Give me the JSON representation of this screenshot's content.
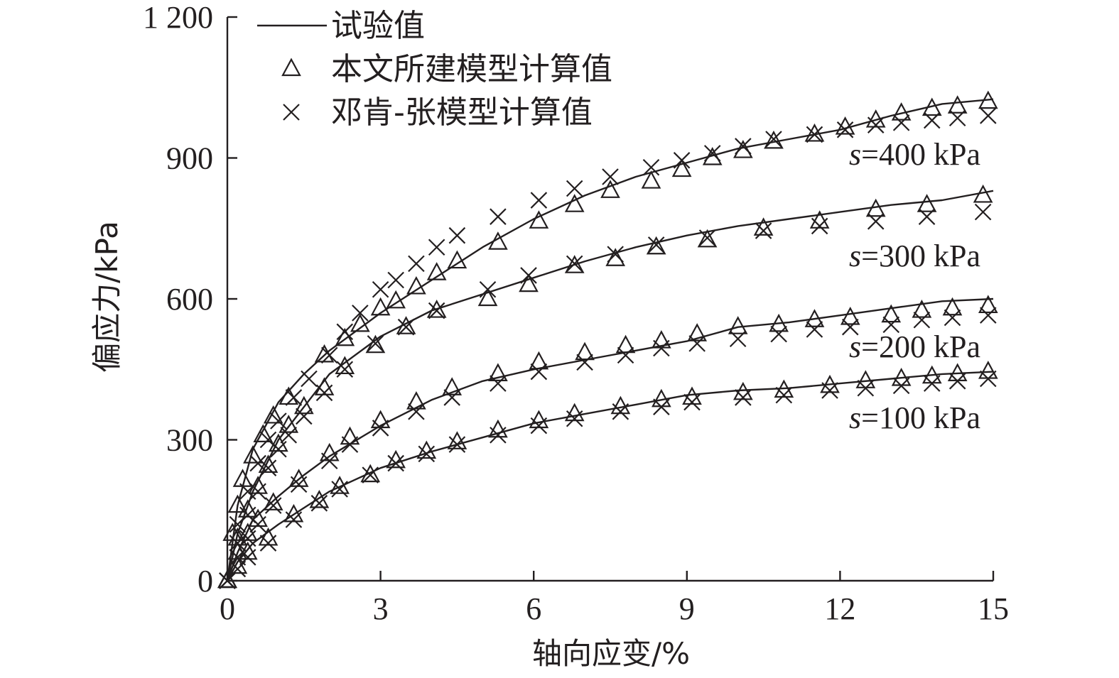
{
  "chart_data": {
    "type": "line",
    "xlabel": "轴向应变/%",
    "ylabel": "偏应力/kPa",
    "xlim": [
      0,
      15
    ],
    "ylim": [
      0,
      1200
    ],
    "x_ticks": [
      "0",
      "3",
      "6",
      "9",
      "12",
      "15"
    ],
    "y_ticks": [
      "0",
      "300",
      "600",
      "900",
      "1 200"
    ],
    "grid": false,
    "legend_position": "top-left",
    "legend": [
      {
        "label": "试验值",
        "symbol": "line"
      },
      {
        "label": "本文所建模型计算值",
        "symbol": "triangle"
      },
      {
        "label": "邓肯-张模型计算值",
        "symbol": "cross"
      }
    ],
    "series": [
      {
        "label_prefix": "s",
        "label_value": "=400 kPa",
        "test_x": [
          0,
          0.2,
          0.5,
          1,
          1.5,
          2,
          3,
          4,
          5,
          6,
          7,
          8,
          9,
          10,
          11,
          12,
          13,
          14,
          15
        ],
        "test_y": [
          0,
          160,
          280,
          380,
          440,
          490,
          570,
          640,
          710,
          770,
          820,
          860,
          890,
          920,
          940,
          960,
          990,
          1015,
          1025
        ],
        "model_x": [
          0,
          0.1,
          0.2,
          0.3,
          0.5,
          0.7,
          0.9,
          1.2,
          1.9,
          2.3,
          2.6,
          3.0,
          3.3,
          3.7,
          4.1,
          4.5,
          5.3,
          6.1,
          6.8,
          7.5,
          8.3,
          8.9,
          9.5,
          10.1,
          10.7,
          11.5,
          12.1,
          12.7,
          13.2,
          13.8,
          14.3,
          14.9
        ],
        "model_y": [
          0,
          100,
          160,
          215,
          265,
          310,
          350,
          390,
          480,
          515,
          545,
          580,
          595,
          625,
          655,
          680,
          720,
          765,
          800,
          830,
          850,
          875,
          900,
          915,
          935,
          950,
          965,
          980,
          995,
          1005,
          1010,
          1020
        ],
        "dc_x": [
          0,
          0.2,
          0.4,
          0.6,
          0.8,
          1.0,
          1.3,
          1.6,
          2.0,
          2.3,
          2.6,
          3.0,
          3.3,
          3.7,
          4.1,
          4.5,
          5.3,
          6.1,
          6.8,
          7.5,
          8.3,
          8.9,
          9.5,
          10.1,
          10.7,
          11.5,
          12.1,
          12.7,
          13.2,
          13.8,
          14.3,
          14.9
        ],
        "dc_y": [
          0,
          120,
          190,
          250,
          300,
          340,
          390,
          430,
          480,
          530,
          570,
          620,
          640,
          675,
          710,
          735,
          775,
          810,
          835,
          860,
          880,
          895,
          910,
          925,
          940,
          950,
          960,
          970,
          975,
          980,
          985,
          990
        ]
      },
      {
        "label_prefix": "s",
        "label_value": "=300 kPa",
        "test_x": [
          0,
          0.2,
          0.5,
          1,
          1.5,
          2,
          3,
          4,
          5,
          6,
          7,
          8,
          9,
          10,
          11,
          12,
          13,
          14,
          15
        ],
        "test_y": [
          0,
          100,
          190,
          300,
          370,
          440,
          520,
          575,
          610,
          645,
          680,
          710,
          735,
          755,
          770,
          785,
          800,
          810,
          830
        ],
        "model_x": [
          0,
          0.2,
          0.4,
          0.6,
          0.8,
          1.0,
          1.2,
          1.5,
          1.9,
          2.3,
          2.9,
          3.5,
          4.1,
          5.1,
          5.9,
          6.8,
          7.6,
          8.4,
          9.4,
          10.5,
          11.6,
          12.7,
          13.7,
          14.8
        ],
        "model_y": [
          0,
          90,
          150,
          200,
          245,
          290,
          330,
          370,
          410,
          455,
          500,
          540,
          575,
          600,
          630,
          670,
          685,
          710,
          725,
          750,
          765,
          790,
          800,
          820
        ],
        "dc_x": [
          0,
          0.2,
          0.4,
          0.6,
          0.8,
          1.0,
          1.2,
          1.5,
          1.9,
          2.3,
          2.9,
          3.5,
          4.1,
          5.1,
          5.9,
          6.8,
          7.6,
          8.4,
          9.4,
          10.5,
          11.6,
          12.7,
          13.7,
          14.8
        ],
        "dc_y": [
          0,
          80,
          140,
          190,
          240,
          280,
          310,
          350,
          400,
          450,
          505,
          540,
          575,
          620,
          650,
          675,
          695,
          715,
          730,
          745,
          755,
          765,
          775,
          785
        ]
      },
      {
        "label_prefix": "s",
        "label_value": "=200 kPa",
        "test_x": [
          0,
          0.2,
          0.5,
          1,
          1.5,
          2,
          3,
          4,
          5,
          6,
          7,
          8,
          9,
          10,
          11,
          12,
          13,
          14,
          15
        ],
        "test_y": [
          0,
          60,
          130,
          180,
          225,
          265,
          330,
          385,
          425,
          450,
          470,
          490,
          510,
          540,
          550,
          565,
          580,
          595,
          600
        ],
        "model_x": [
          0,
          0.2,
          0.4,
          0.6,
          0.9,
          1.4,
          2.0,
          2.4,
          3.0,
          3.7,
          4.4,
          5.3,
          6.1,
          7.0,
          7.8,
          8.5,
          9.2,
          10.0,
          10.8,
          11.5,
          12.2,
          13.0,
          13.6,
          14.2,
          14.9
        ],
        "model_y": [
          0,
          60,
          100,
          130,
          165,
          215,
          270,
          305,
          340,
          380,
          410,
          440,
          465,
          485,
          500,
          510,
          525,
          540,
          545,
          555,
          560,
          565,
          575,
          580,
          585
        ],
        "dc_x": [
          0,
          0.2,
          0.4,
          0.6,
          0.9,
          1.4,
          2.0,
          2.4,
          3.0,
          3.7,
          4.4,
          5.3,
          6.1,
          7.0,
          7.8,
          8.5,
          9.2,
          10.0,
          10.8,
          11.5,
          12.2,
          13.0,
          13.6,
          14.2,
          14.9
        ],
        "dc_y": [
          0,
          50,
          90,
          120,
          160,
          205,
          255,
          290,
          325,
          360,
          390,
          420,
          445,
          465,
          480,
          495,
          505,
          515,
          525,
          535,
          540,
          545,
          555,
          560,
          565
        ]
      },
      {
        "label_prefix": "s",
        "label_value": "=100 kPa",
        "test_x": [
          0,
          0.2,
          0.5,
          1,
          1.5,
          2,
          3,
          4,
          5,
          6,
          7,
          8,
          9,
          10,
          11,
          12,
          13,
          14,
          15
        ],
        "test_y": [
          0,
          40,
          80,
          120,
          155,
          190,
          240,
          275,
          305,
          335,
          355,
          375,
          395,
          405,
          410,
          420,
          430,
          440,
          445
        ],
        "model_x": [
          0,
          0.2,
          0.4,
          0.8,
          1.3,
          1.8,
          2.2,
          2.8,
          3.3,
          3.9,
          4.5,
          5.3,
          6.1,
          6.8,
          7.7,
          8.5,
          9.1,
          10.1,
          10.9,
          11.8,
          12.5,
          13.2,
          13.8,
          14.3,
          14.9
        ],
        "model_y": [
          0,
          30,
          60,
          90,
          140,
          170,
          200,
          225,
          255,
          275,
          295,
          320,
          340,
          355,
          370,
          385,
          390,
          400,
          405,
          415,
          425,
          430,
          435,
          440,
          445
        ],
        "dc_x": [
          0,
          0.2,
          0.4,
          0.8,
          1.3,
          1.8,
          2.2,
          2.8,
          3.3,
          3.9,
          4.5,
          5.3,
          6.1,
          6.8,
          7.7,
          8.5,
          9.1,
          10.1,
          10.9,
          11.8,
          12.5,
          13.2,
          13.8,
          14.3,
          14.9
        ],
        "dc_y": [
          0,
          25,
          50,
          80,
          130,
          165,
          195,
          225,
          250,
          270,
          290,
          310,
          330,
          345,
          360,
          370,
          380,
          390,
          395,
          405,
          410,
          415,
          420,
          425,
          430
        ]
      }
    ]
  }
}
